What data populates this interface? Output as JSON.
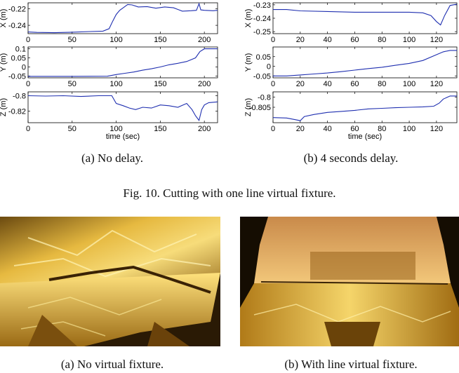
{
  "figure10": {
    "caption": "Fig. 10.   Cutting with one line virtual fixture.",
    "panel_a_caption": "(a)  No delay.",
    "panel_b_caption": "(b)  4 seconds delay.",
    "xlabel": "time (sec)",
    "line_color": "#1f2fb0"
  },
  "figure11": {
    "panel_a_caption": "(a)  No virtual fixture.",
    "panel_b_caption": "(b)  With line virtual fixture."
  },
  "chart_data": [
    {
      "type": "line",
      "name": "panel-a-x",
      "ylabel": "X (m)",
      "xlim": [
        0,
        215
      ],
      "ylim": [
        -0.25,
        -0.213
      ],
      "x_ticks": [
        0,
        50,
        100,
        150,
        200
      ],
      "y_ticks": [
        "-0.22",
        "-0.24"
      ],
      "y_tick_values": [
        -0.22,
        -0.24
      ],
      "x": [
        0,
        10,
        30,
        50,
        70,
        85,
        92,
        96,
        100,
        104,
        108,
        113,
        118,
        125,
        135,
        145,
        155,
        165,
        175,
        185,
        191,
        194,
        196,
        200,
        210,
        215
      ],
      "y": [
        -0.248,
        -0.2485,
        -0.2488,
        -0.2482,
        -0.2475,
        -0.247,
        -0.244,
        -0.235,
        -0.227,
        -0.222,
        -0.219,
        -0.215,
        -0.2155,
        -0.218,
        -0.2175,
        -0.2195,
        -0.218,
        -0.219,
        -0.223,
        -0.2225,
        -0.222,
        -0.214,
        -0.2215,
        -0.222,
        -0.2225,
        -0.222
      ]
    },
    {
      "type": "line",
      "name": "panel-a-y",
      "ylabel": "Y (m)",
      "xlim": [
        0,
        215
      ],
      "ylim": [
        -0.06,
        0.11
      ],
      "x_ticks": [
        0,
        50,
        100,
        150,
        200
      ],
      "y_ticks": [
        "0.1",
        "0.05",
        "0",
        "-0.05"
      ],
      "y_tick_values": [
        0.1,
        0.05,
        0,
        -0.05
      ],
      "x": [
        0,
        50,
        90,
        100,
        110,
        120,
        130,
        140,
        150,
        160,
        170,
        180,
        190,
        195,
        200,
        210,
        215
      ],
      "y": [
        -0.052,
        -0.052,
        -0.051,
        -0.042,
        -0.035,
        -0.028,
        -0.018,
        -0.01,
        0.0,
        0.012,
        0.02,
        0.03,
        0.05,
        0.085,
        0.1,
        0.1,
        0.1
      ]
    },
    {
      "type": "line",
      "name": "panel-a-z",
      "ylabel": "Z (m)",
      "xlim": [
        0,
        215
      ],
      "ylim": [
        -0.835,
        -0.795
      ],
      "x_ticks": [
        0,
        50,
        100,
        150,
        200
      ],
      "y_ticks": [
        "-0.8",
        "-0.82"
      ],
      "y_tick_values": [
        -0.8,
        -0.82
      ],
      "x": [
        0,
        20,
        40,
        60,
        80,
        95,
        100,
        108,
        115,
        122,
        130,
        140,
        150,
        160,
        170,
        180,
        186,
        190,
        194,
        197,
        200,
        205,
        215
      ],
      "y": [
        -0.8,
        -0.8005,
        -0.8,
        -0.801,
        -0.8,
        -0.8,
        -0.81,
        -0.813,
        -0.816,
        -0.818,
        -0.815,
        -0.816,
        -0.812,
        -0.813,
        -0.815,
        -0.81,
        -0.818,
        -0.826,
        -0.832,
        -0.818,
        -0.812,
        -0.809,
        -0.808
      ]
    },
    {
      "type": "line",
      "name": "panel-b-x",
      "ylabel": "X (m)",
      "xlim": [
        0,
        135
      ],
      "ylim": [
        -0.2515,
        -0.2285
      ],
      "x_ticks": [
        0,
        20,
        40,
        60,
        80,
        100,
        120
      ],
      "y_ticks": [
        "-0.23",
        "-0.24",
        "-0.25"
      ],
      "y_tick_values": [
        -0.23,
        -0.24,
        -0.25
      ],
      "x": [
        0,
        10,
        20,
        40,
        60,
        80,
        100,
        110,
        116,
        120,
        123,
        126,
        130,
        135
      ],
      "y": [
        -0.2335,
        -0.2335,
        -0.2345,
        -0.235,
        -0.2355,
        -0.2355,
        -0.2355,
        -0.236,
        -0.238,
        -0.2425,
        -0.245,
        -0.238,
        -0.2305,
        -0.2295
      ]
    },
    {
      "type": "line",
      "name": "panel-b-y",
      "ylabel": "Y (m)",
      "xlim": [
        0,
        135
      ],
      "ylim": [
        -0.06,
        0.1
      ],
      "x_ticks": [
        0,
        20,
        40,
        60,
        80,
        100,
        120
      ],
      "y_ticks": [
        "0.05",
        "0",
        "-0.05"
      ],
      "y_tick_values": [
        0.05,
        0,
        -0.05
      ],
      "x": [
        0,
        10,
        20,
        30,
        40,
        50,
        60,
        70,
        80,
        90,
        100,
        110,
        120,
        125,
        130,
        135
      ],
      "y": [
        -0.05,
        -0.05,
        -0.045,
        -0.04,
        -0.035,
        -0.028,
        -0.02,
        -0.012,
        -0.005,
        0.005,
        0.015,
        0.03,
        0.06,
        0.075,
        0.082,
        0.082
      ]
    },
    {
      "type": "line",
      "name": "panel-b-z",
      "ylabel": "Z (m)",
      "xlim": [
        0,
        135
      ],
      "ylim": [
        -0.8125,
        -0.7975
      ],
      "x_ticks": [
        0,
        20,
        40,
        60,
        80,
        100,
        120
      ],
      "y_ticks": [
        "-0.8",
        "-0.805"
      ],
      "y_tick_values": [
        -0.8,
        -0.805
      ],
      "x": [
        0,
        10,
        16,
        20,
        23,
        30,
        40,
        50,
        60,
        70,
        80,
        90,
        100,
        110,
        118,
        122,
        125,
        130,
        135
      ],
      "y": [
        -0.81,
        -0.8102,
        -0.811,
        -0.8115,
        -0.8095,
        -0.8085,
        -0.8075,
        -0.807,
        -0.8065,
        -0.8058,
        -0.8055,
        -0.8052,
        -0.805,
        -0.8048,
        -0.8045,
        -0.803,
        -0.801,
        -0.7995,
        -0.7995
      ]
    }
  ]
}
